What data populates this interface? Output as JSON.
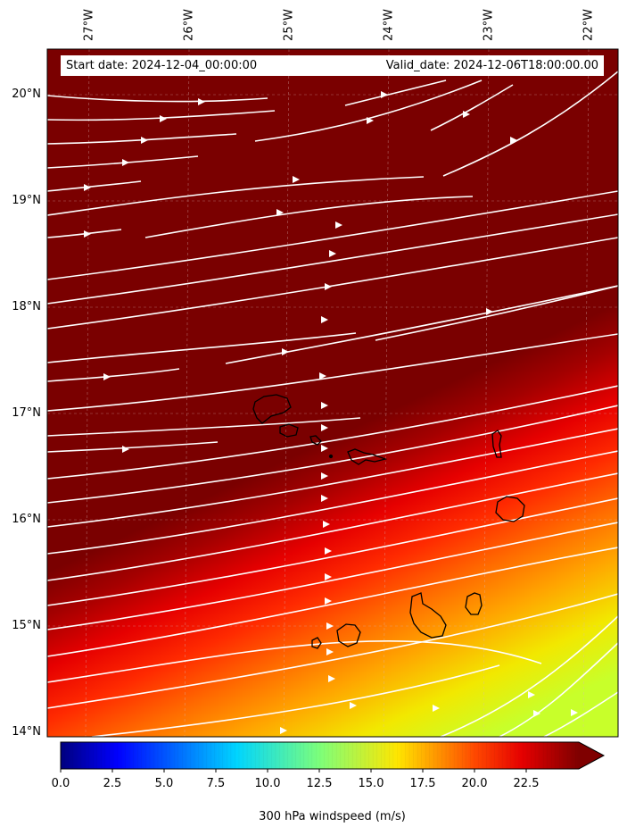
{
  "map": {
    "start_date_text": "Start date: 2024-12-04_00:00:00",
    "valid_date_text": "Valid_date: 2024-12-06T18:00:00.00",
    "longitude_labels": [
      "27°W",
      "26°W",
      "25°W",
      "24°W",
      "23°W",
      "22°W"
    ],
    "latitude_labels": [
      "20°N",
      "19°N",
      "18°N",
      "17°N",
      "16°N",
      "15°N",
      "14°N"
    ],
    "field": "300 hPa windspeed",
    "streamline_color": "#ffffff",
    "coastline_color": "#000000",
    "islands": [
      "Santo Antão",
      "São Vicente",
      "Santa Luzia",
      "São Nicolau",
      "Sal",
      "Boa Vista",
      "Maio",
      "Santiago",
      "Fogo",
      "Brava"
    ]
  },
  "colorbar": {
    "label": "300 hPa windspeed (m/s)",
    "ticks": [
      "0.0",
      "2.5",
      "5.0",
      "7.5",
      "10.0",
      "12.5",
      "15.0",
      "17.5",
      "20.0",
      "22.5"
    ],
    "extend": "max",
    "colormap": "jet"
  }
}
